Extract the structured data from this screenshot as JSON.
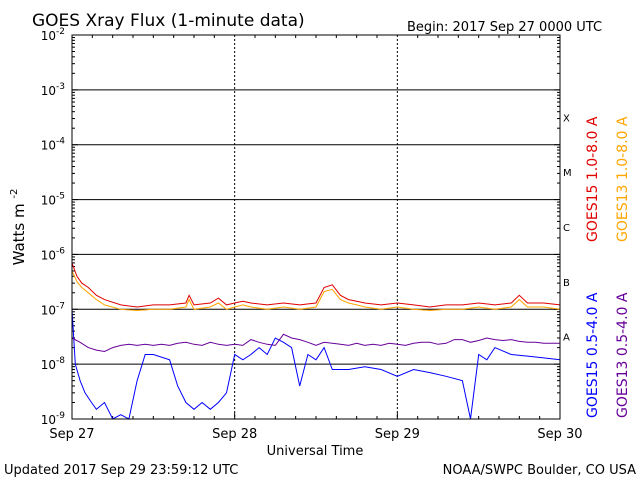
{
  "chart_data": {
    "type": "line",
    "title": "GOES Xray Flux (1-minute data)",
    "begin_label": "Begin:  2017 Sep 27 0000 UTC",
    "xlabel": "Universal Time",
    "ylabel_main": "Watts m",
    "ylabel_exp": "-2",
    "x_ticks": [
      "Sep 27",
      "Sep 28",
      "Sep 29",
      "Sep 30"
    ],
    "x_range_days": [
      0,
      3
    ],
    "y_scale": "log",
    "y_ticks": [
      {
        "base": "10",
        "exp": "-2",
        "value": 0.01
      },
      {
        "base": "10",
        "exp": "-3",
        "value": 0.001
      },
      {
        "base": "10",
        "exp": "-4",
        "value": 0.0001
      },
      {
        "base": "10",
        "exp": "-5",
        "value": 1e-05
      },
      {
        "base": "10",
        "exp": "-6",
        "value": 1e-06
      },
      {
        "base": "10",
        "exp": "-7",
        "value": 1e-07
      },
      {
        "base": "10",
        "exp": "-8",
        "value": 1e-08
      },
      {
        "base": "10",
        "exp": "-9",
        "value": 1e-09
      }
    ],
    "ylim": [
      1e-09,
      0.01
    ],
    "flare_classes": [
      {
        "label": "X",
        "value": 0.0001
      },
      {
        "label": "M",
        "value": 1e-05
      },
      {
        "label": "C",
        "value": 1e-06
      },
      {
        "label": "B",
        "value": 1e-07
      },
      {
        "label": "A",
        "value": 1e-08
      }
    ],
    "series": [
      {
        "name": "GOES15 1.0-8.0 A",
        "color": "#e00000",
        "x": [
          0.0,
          0.03,
          0.06,
          0.1,
          0.15,
          0.2,
          0.3,
          0.4,
          0.5,
          0.6,
          0.7,
          0.72,
          0.75,
          0.85,
          0.9,
          0.95,
          1.0,
          1.05,
          1.1,
          1.2,
          1.3,
          1.4,
          1.5,
          1.55,
          1.6,
          1.65,
          1.7,
          1.75,
          1.8,
          1.9,
          2.0,
          2.1,
          2.2,
          2.3,
          2.4,
          2.5,
          2.6,
          2.7,
          2.75,
          2.8,
          2.9,
          3.0
        ],
        "y": [
          7e-07,
          4e-07,
          3e-07,
          2.5e-07,
          1.8e-07,
          1.5e-07,
          1.2e-07,
          1.1e-07,
          1.2e-07,
          1.2e-07,
          1.3e-07,
          1.8e-07,
          1.2e-07,
          1.3e-07,
          1.6e-07,
          1.2e-07,
          1.3e-07,
          1.4e-07,
          1.3e-07,
          1.2e-07,
          1.3e-07,
          1.2e-07,
          1.3e-07,
          2.5e-07,
          2.8e-07,
          1.8e-07,
          1.5e-07,
          1.4e-07,
          1.3e-07,
          1.2e-07,
          1.3e-07,
          1.2e-07,
          1.1e-07,
          1.2e-07,
          1.2e-07,
          1.3e-07,
          1.2e-07,
          1.3e-07,
          1.8e-07,
          1.3e-07,
          1.3e-07,
          1.2e-07
        ]
      },
      {
        "name": "GOES13 1.0-8.0 A",
        "color": "#ffa500",
        "x": [
          0.0,
          0.03,
          0.06,
          0.1,
          0.15,
          0.2,
          0.3,
          0.4,
          0.5,
          0.6,
          0.7,
          0.72,
          0.75,
          0.85,
          0.9,
          0.95,
          1.0,
          1.05,
          1.1,
          1.2,
          1.3,
          1.4,
          1.5,
          1.55,
          1.6,
          1.65,
          1.7,
          1.75,
          1.8,
          1.9,
          2.0,
          2.1,
          2.2,
          2.3,
          2.4,
          2.5,
          2.6,
          2.7,
          2.75,
          2.8,
          2.9,
          3.0
        ],
        "y": [
          5e-07,
          3.2e-07,
          2.5e-07,
          2e-07,
          1.5e-07,
          1.2e-07,
          1e-07,
          9.5e-08,
          1e-07,
          1e-07,
          1.1e-07,
          1.5e-07,
          1e-07,
          1.1e-07,
          1.3e-07,
          1e-07,
          1.1e-07,
          1.2e-07,
          1.1e-07,
          1e-07,
          1.1e-07,
          1e-07,
          1.1e-07,
          2.1e-07,
          2.3e-07,
          1.5e-07,
          1.3e-07,
          1.2e-07,
          1.1e-07,
          1e-07,
          1.1e-07,
          1e-07,
          9.5e-08,
          1e-07,
          1e-07,
          1.1e-07,
          1e-07,
          1.1e-07,
          1.5e-07,
          1.1e-07,
          1.1e-07,
          1e-07
        ]
      },
      {
        "name": "GOES15 0.5-4.0 A",
        "color": "#0000ff",
        "x": [
          0.0,
          0.02,
          0.05,
          0.08,
          0.12,
          0.15,
          0.2,
          0.25,
          0.3,
          0.35,
          0.4,
          0.45,
          0.5,
          0.6,
          0.65,
          0.7,
          0.75,
          0.8,
          0.85,
          0.9,
          0.95,
          1.0,
          1.05,
          1.1,
          1.15,
          1.2,
          1.25,
          1.3,
          1.35,
          1.4,
          1.45,
          1.5,
          1.55,
          1.6,
          1.7,
          1.8,
          1.9,
          2.0,
          2.1,
          2.2,
          2.3,
          2.4,
          2.45,
          2.5,
          2.55,
          2.6,
          2.7,
          2.8,
          2.9,
          3.0
        ],
        "y": [
          1e-07,
          1e-08,
          5e-09,
          3e-09,
          2e-09,
          1.5e-09,
          2e-09,
          1e-09,
          1.2e-09,
          1e-09,
          5e-09,
          1.5e-08,
          1.5e-08,
          1.2e-08,
          4e-09,
          2e-09,
          1.5e-09,
          2e-09,
          1.5e-09,
          2e-09,
          3e-09,
          1.5e-08,
          1.2e-08,
          1.5e-08,
          2e-08,
          1.5e-08,
          3e-08,
          2.5e-08,
          2e-08,
          4e-09,
          1.5e-08,
          1.2e-08,
          2e-08,
          8e-09,
          8e-09,
          9e-09,
          8e-09,
          6e-09,
          8e-09,
          7e-09,
          6e-09,
          5e-09,
          1e-09,
          1.5e-08,
          1.2e-08,
          2e-08,
          1.5e-08,
          1.4e-08,
          1.3e-08,
          1.2e-08
        ]
      },
      {
        "name": "GOES13 0.5-4.0 A",
        "color": "#660099",
        "x": [
          0.0,
          0.05,
          0.1,
          0.15,
          0.2,
          0.25,
          0.3,
          0.35,
          0.4,
          0.45,
          0.5,
          0.55,
          0.6,
          0.65,
          0.7,
          0.75,
          0.8,
          0.85,
          0.9,
          0.95,
          1.0,
          1.05,
          1.1,
          1.15,
          1.2,
          1.25,
          1.3,
          1.35,
          1.4,
          1.45,
          1.5,
          1.55,
          1.6,
          1.65,
          1.7,
          1.75,
          1.8,
          1.85,
          1.9,
          1.95,
          2.0,
          2.05,
          2.1,
          2.15,
          2.2,
          2.25,
          2.3,
          2.35,
          2.4,
          2.45,
          2.5,
          2.55,
          2.6,
          2.65,
          2.7,
          2.75,
          2.8,
          2.85,
          2.9,
          2.95,
          3.0
        ],
        "y": [
          3e-08,
          2.5e-08,
          2e-08,
          1.8e-08,
          1.7e-08,
          2e-08,
          2.2e-08,
          2.3e-08,
          2.2e-08,
          2.3e-08,
          2.2e-08,
          2.3e-08,
          2.2e-08,
          2.4e-08,
          2.5e-08,
          2.3e-08,
          2.2e-08,
          2.5e-08,
          2.3e-08,
          2.2e-08,
          2.3e-08,
          2.2e-08,
          2.8e-08,
          2.5e-08,
          2.3e-08,
          2.2e-08,
          3.5e-08,
          3e-08,
          2.8e-08,
          2.5e-08,
          2.2e-08,
          2.5e-08,
          2.4e-08,
          2.3e-08,
          2.2e-08,
          2.4e-08,
          2.2e-08,
          2.3e-08,
          2.2e-08,
          2.4e-08,
          2.3e-08,
          2.2e-08,
          2.4e-08,
          2.5e-08,
          2.5e-08,
          2.3e-08,
          2.4e-08,
          2.8e-08,
          2.8e-08,
          2.5e-08,
          2.7e-08,
          3e-08,
          2.8e-08,
          2.7e-08,
          2.8e-08,
          2.6e-08,
          2.5e-08,
          2.5e-08,
          2.4e-08,
          2.4e-08,
          2.4e-08
        ]
      }
    ]
  },
  "footer": {
    "updated": "Updated 2017 Sep 29 23:59:12 UTC",
    "credit": "NOAA/SWPC Boulder, CO USA"
  }
}
